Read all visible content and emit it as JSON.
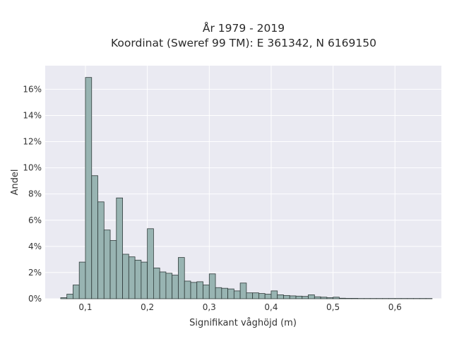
{
  "chart_data": {
    "type": "bar",
    "title_lines": [
      "År 1979 - 2019",
      "Koordinat (Sweref 99 TM): E 361342, N 6169150"
    ],
    "xlabel": "Signifikant våghöjd (m)",
    "ylabel": "Andel",
    "xlim": [
      0.035,
      0.675
    ],
    "ylim": [
      0,
      17.8
    ],
    "x_ticks": [
      0.1,
      0.2,
      0.3,
      0.4,
      0.5,
      0.6
    ],
    "x_tick_labels": [
      "0,1",
      "0,2",
      "0,3",
      "0,4",
      "0,5",
      "0,6"
    ],
    "y_ticks": [
      0,
      2,
      4,
      6,
      8,
      10,
      12,
      14,
      16
    ],
    "y_tick_labels": [
      "0%",
      "2%",
      "4%",
      "6%",
      "8%",
      "10%",
      "12%",
      "14%",
      "16%"
    ],
    "grid": true,
    "bin_start": 0.06,
    "bin_width": 0.01,
    "values": [
      0.08,
      0.35,
      1.05,
      2.8,
      16.9,
      9.4,
      7.4,
      5.25,
      4.45,
      7.7,
      3.4,
      3.2,
      2.95,
      2.8,
      5.35,
      2.35,
      2.05,
      1.95,
      1.8,
      3.15,
      1.35,
      1.25,
      1.3,
      1.05,
      1.9,
      0.85,
      0.8,
      0.75,
      0.6,
      1.2,
      0.45,
      0.45,
      0.4,
      0.35,
      0.6,
      0.3,
      0.25,
      0.22,
      0.2,
      0.18,
      0.3,
      0.15,
      0.12,
      0.08,
      0.12,
      0.04,
      0.03,
      0.03,
      0.02,
      0.02,
      0.02,
      0.02,
      0.02,
      0.02,
      0.02,
      0.02,
      0.02,
      0.02,
      0.02,
      0.02
    ],
    "colors": {
      "bar_fill": "#98b4b2",
      "bar_stroke": "#2f3b3a",
      "plot_bg": "#eaeaf2",
      "grid": "#ffffff"
    }
  }
}
